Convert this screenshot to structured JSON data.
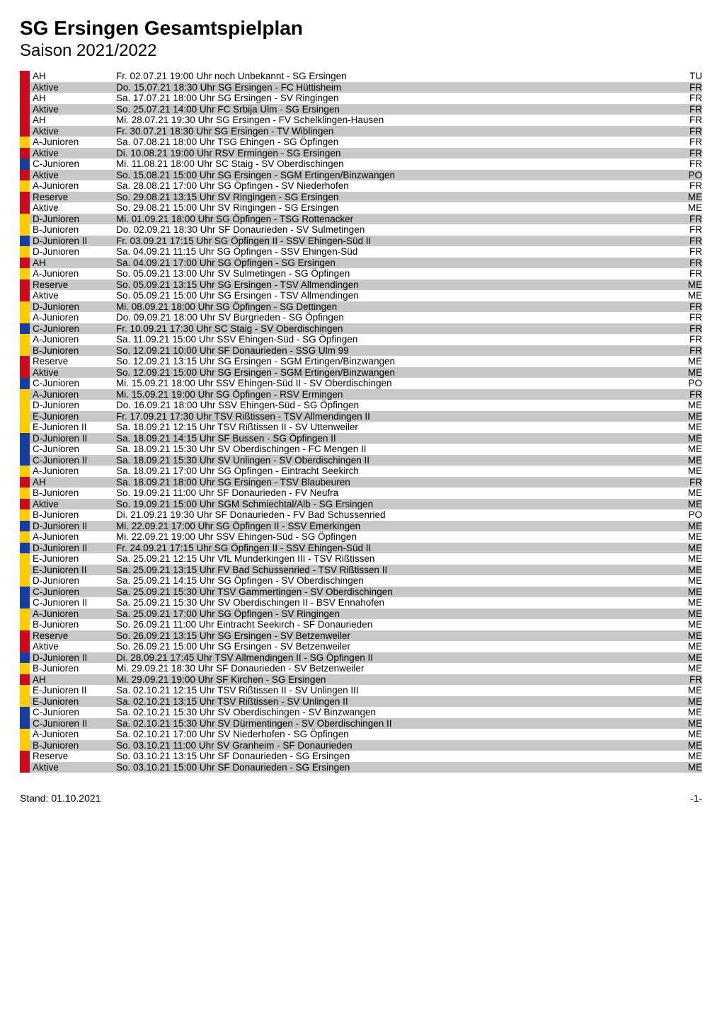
{
  "title": "SG Ersingen Gesamtspielplan",
  "subtitle": "Saison 2021/2022",
  "footer_left": "Stand: 01.10.2021",
  "footer_right": "-1-",
  "colors": {
    "AH": "#cc0a1e",
    "Aktive": "#cc0a1e",
    "A-Junioren": "#ffcc00",
    "B-Junioren": "#ffcc00",
    "C-Junioren": "#1a3ea0",
    "C-Junioren II": "#1a3ea0",
    "D-Junioren": "#ffcc00",
    "D-Junioren II": "#1a3ea0",
    "E-Junioren": "#ffcc00",
    "E-Junioren II": "#ffcc00",
    "Reserve": "#cc0a1e",
    "shaded_bg": "#c8c8c8"
  },
  "rows": [
    {
      "shaded": false,
      "cat": "AH",
      "text": "Fr.  02.07.21 19:00 Uhr noch Unbekannt - SG Ersingen",
      "code": "TU"
    },
    {
      "shaded": true,
      "cat": "Aktive",
      "text": "Do. 15.07.21 18:30 Uhr SG Ersingen - FC Hüttisheim",
      "code": "FR"
    },
    {
      "shaded": false,
      "cat": "AH",
      "text": "Sa. 17.07.21 18:00 Uhr SG Ersingen - SV Ringingen",
      "code": "FR"
    },
    {
      "shaded": true,
      "cat": "Aktive",
      "text": "So. 25.07.21 14:00 Uhr FC Srbija Ulm - SG Ersingen",
      "code": "FR"
    },
    {
      "shaded": false,
      "cat": "AH",
      "text": "Mi.  28.07.21 19:30 Uhr SG Ersingen - FV Schelklingen-Hausen",
      "code": "FR"
    },
    {
      "shaded": true,
      "cat": "Aktive",
      "text": "Fr.  30.07.21 18:30 Uhr SG Ersingen - TV Wiblingen",
      "code": "FR"
    },
    {
      "shaded": false,
      "cat": "A-Junioren",
      "text": "Sa. 07.08.21 18:00 Uhr TSG Ehingen - SG Öpfingen",
      "code": "FR"
    },
    {
      "shaded": true,
      "cat": "Aktive",
      "text": "Di.  10.08.21 19:00 Uhr RSV Ermingen - SG Ersingen",
      "code": "FR"
    },
    {
      "shaded": false,
      "cat": "C-Junioren",
      "text": "Mi.  11.08.21 18:00 Uhr SC Staig - SV Oberdischingen",
      "code": "FR"
    },
    {
      "shaded": true,
      "cat": "Aktive",
      "text": "So. 15.08.21 15:00 Uhr SG Ersingen - SGM Ertingen/Binzwangen",
      "code": "PO"
    },
    {
      "shaded": false,
      "cat": "A-Junioren",
      "text": "Sa. 28.08.21 17:00 Uhr SG Öpfingen - SV Niederhofen",
      "code": "FR"
    },
    {
      "shaded": true,
      "cat": "Reserve",
      "text": "So. 29.08.21 13:15 Uhr SV Ringingen - SG Ersingen",
      "code": "ME"
    },
    {
      "shaded": false,
      "cat": "Aktive",
      "text": "So. 29.08.21 15:00 Uhr SV Ringingen - SG Ersingen",
      "code": "ME"
    },
    {
      "shaded": true,
      "cat": "D-Junioren",
      "text": "Mi.  01.09.21 18:00 Uhr SG Öpfingen - TSG Rottenacker",
      "code": "FR"
    },
    {
      "shaded": false,
      "cat": "B-Junioren",
      "text": "Do. 02.09.21 18:30 Uhr SF Donaurieden - SV Sulmetingen",
      "code": "FR"
    },
    {
      "shaded": true,
      "cat": "D-Junioren II",
      "text": "Fr.  03.09.21 17:15 Uhr SG Öpfingen II - SSV Ehingen-Süd II",
      "code": "FR"
    },
    {
      "shaded": false,
      "cat": "D-Junioren",
      "text": "Sa. 04.09.21 11:15 Uhr SG Öpfingen - SSV Ehingen-Süd",
      "code": "FR"
    },
    {
      "shaded": true,
      "cat": "AH",
      "text": "Sa. 04.09.21 17:00 Uhr SG Öpfingen - SG Ersingen",
      "code": "FR"
    },
    {
      "shaded": false,
      "cat": "A-Junioren",
      "text": "So. 05.09.21 13:00 Uhr SV Sulmetingen - SG Öpfingen",
      "code": "FR"
    },
    {
      "shaded": true,
      "cat": "Reserve",
      "text": "So. 05.09.21 13:15 Uhr SG Ersingen - TSV Allmendingen",
      "code": "ME"
    },
    {
      "shaded": false,
      "cat": "Aktive",
      "text": "So. 05.09.21 15:00 Uhr SG Ersingen - TSV Allmendingen",
      "code": "ME"
    },
    {
      "shaded": true,
      "cat": "D-Junioren",
      "text": "Mi.  08.09.21 18:00 Uhr SG Öpfingen - SG Dettingen",
      "code": "FR"
    },
    {
      "shaded": false,
      "cat": "A-Junioren",
      "text": "Do. 09.09.21 18:00 Uhr SV Burgrieden - SG Öpfingen",
      "code": "FR"
    },
    {
      "shaded": true,
      "cat": "C-Junioren",
      "text": "Fr.  10.09.21 17:30 Uhr SC Staig - SV Oberdischingen",
      "code": "FR"
    },
    {
      "shaded": false,
      "cat": "A-Junioren",
      "text": "Sa. 11.09.21 15:00 Uhr SSV Ehingen-Süd - SG Öpfingen",
      "code": "FR"
    },
    {
      "shaded": true,
      "cat": "B-Junioren",
      "text": "So. 12.09.21 10:00 Uhr SF Donaurieden - SSG Ulm 99",
      "code": "FR"
    },
    {
      "shaded": false,
      "cat": "Reserve",
      "text": "So. 12.09.21 13:15 Uhr SG Ersingen - SGM Ertingen/Binzwangen",
      "code": "ME"
    },
    {
      "shaded": true,
      "cat": "Aktive",
      "text": "So. 12.09.21 15:00 Uhr SG Ersingen - SGM Ertingen/Binzwangen",
      "code": "ME"
    },
    {
      "shaded": false,
      "cat": "C-Junioren",
      "text": "Mi.  15.09.21 18:00 Uhr SSV Ehingen-Süd II - SV Oberdischingen",
      "code": "PO"
    },
    {
      "shaded": true,
      "cat": "A-Junioren",
      "text": "Mi.  15.09.21 19:00 Uhr SG Öpfingen - RSV Ermingen",
      "code": "FR"
    },
    {
      "shaded": false,
      "cat": "D-Junioren",
      "text": "Do. 16.09.21 18:00 Uhr SSV Ehingen-Süd - SG Öpfingen",
      "code": "ME"
    },
    {
      "shaded": true,
      "cat": "E-Junioren",
      "text": "Fr.  17.09.21 17:30 Uhr TSV Rißtissen - TSV Allmendingen II",
      "code": "ME"
    },
    {
      "shaded": false,
      "cat": "E-Junioren II",
      "text": "Sa. 18.09.21 12:15 Uhr TSV Rißtissen II - SV Uttenweiler",
      "code": "ME"
    },
    {
      "shaded": true,
      "cat": "D-Junioren II",
      "text": "Sa. 18.09.21 14:15 Uhr SF Bussen - SG Öpfingen II",
      "code": "ME"
    },
    {
      "shaded": false,
      "cat": "C-Junioren",
      "text": "Sa. 18.09.21 15:30 Uhr SV Oberdischingen - FC Mengen II",
      "code": "ME"
    },
    {
      "shaded": true,
      "cat": "C-Junioren II",
      "text": "Sa. 18.09.21 15:30 Uhr SV Unlingen - SV Oberdischingen II",
      "code": "ME"
    },
    {
      "shaded": false,
      "cat": "A-Junioren",
      "text": "Sa. 18.09.21 17:00 Uhr SG Öpfingen - Eintracht Seekirch",
      "code": "ME"
    },
    {
      "shaded": true,
      "cat": "AH",
      "text": "Sa. 18.09.21 18:00 Uhr SG Ersingen - TSV Blaubeuren",
      "code": "FR"
    },
    {
      "shaded": false,
      "cat": "B-Junioren",
      "text": "So. 19.09.21 11:00 Uhr SF Donaurieden - FV Neufra",
      "code": "ME"
    },
    {
      "shaded": true,
      "cat": "Aktive",
      "text": "So. 19.09.21 15:00 Uhr SGM Schmiechtal/Alb - SG Ersingen",
      "code": "ME"
    },
    {
      "shaded": false,
      "cat": "B-Junioren",
      "text": "Di.  21.09.21 19:30 Uhr SF Donaurieden - FV Bad Schussenried",
      "code": "PO"
    },
    {
      "shaded": true,
      "cat": "D-Junioren II",
      "text": "Mi.  22.09.21 17:00 Uhr SG Öpfingen II - SSV Emerkingen",
      "code": "ME"
    },
    {
      "shaded": false,
      "cat": "A-Junioren",
      "text": "Mi.  22.09.21 19:00 Uhr SSV Ehingen-Süd - SG Öpfingen",
      "code": "ME"
    },
    {
      "shaded": true,
      "cat": "D-Junioren II",
      "text": "Fr.  24.09.21 17:15 Uhr SG Öpfingen II - SSV Ehingen-Süd II",
      "code": "ME"
    },
    {
      "shaded": false,
      "cat": "E-Junioren",
      "text": "Sa. 25.09.21 12:15 Uhr VfL Munderkingen III - TSV Rißtissen",
      "code": "ME"
    },
    {
      "shaded": true,
      "cat": "E-Junioren II",
      "text": "Sa. 25.09.21 13:15 Uhr FV Bad Schussenried - TSV Rißtissen II",
      "code": "ME"
    },
    {
      "shaded": false,
      "cat": "D-Junioren",
      "text": "Sa. 25.09.21 14:15 Uhr SG Öpfingen - SV Oberdischingen",
      "code": "ME"
    },
    {
      "shaded": true,
      "cat": "C-Junioren",
      "text": "Sa. 25.09.21 15:30 Uhr TSV Gammertingen - SV Oberdischingen",
      "code": "ME"
    },
    {
      "shaded": false,
      "cat": "C-Junioren II",
      "text": "Sa. 25.09.21 15:30 Uhr SV Oberdischingen II - BSV Ennahofen",
      "code": "ME"
    },
    {
      "shaded": true,
      "cat": "A-Junioren",
      "text": "Sa. 25.09.21 17:00 Uhr SG Öpfingen - SV Ringingen",
      "code": "ME"
    },
    {
      "shaded": false,
      "cat": "B-Junioren",
      "text": "So. 26.09.21 11:00 Uhr Eintracht Seekirch - SF Donaurieden",
      "code": "ME"
    },
    {
      "shaded": true,
      "cat": "Reserve",
      "text": "So. 26.09.21 13:15 Uhr SG Ersingen - SV Betzenweiler",
      "code": "ME"
    },
    {
      "shaded": false,
      "cat": "Aktive",
      "text": "So. 26.09.21 15:00 Uhr SG Ersingen - SV Betzenweiler",
      "code": "ME"
    },
    {
      "shaded": true,
      "cat": "D-Junioren II",
      "text": "Di.  28.09.21 17:45 Uhr TSV Allmendingen II - SG Öpfingen II",
      "code": "ME"
    },
    {
      "shaded": false,
      "cat": "B-Junioren",
      "text": "Mi.  29.09.21 18:30 Uhr SF Donaurieden - SV Betzenweiler",
      "code": "ME"
    },
    {
      "shaded": true,
      "cat": "AH",
      "text": "Mi.  29.09.21 19:00 Uhr SF Kirchen - SG Ersingen",
      "code": "FR"
    },
    {
      "shaded": false,
      "cat": "E-Junioren II",
      "text": "Sa. 02.10.21 12:15 Uhr TSV Rißtissen II - SV Unlingen III",
      "code": "ME"
    },
    {
      "shaded": true,
      "cat": "E-Junioren",
      "text": "Sa. 02.10.21 13:15 Uhr TSV Rißtissen - SV Unlingen II",
      "code": "ME"
    },
    {
      "shaded": false,
      "cat": "C-Junioren",
      "text": "Sa. 02.10.21 15:30 Uhr SV Oberdischingen - SV Binzwangen",
      "code": "ME"
    },
    {
      "shaded": true,
      "cat": "C-Junioren II",
      "text": "Sa. 02.10.21 15:30 Uhr SV Dürmentingen - SV Oberdischingen II",
      "code": "ME"
    },
    {
      "shaded": false,
      "cat": "A-Junioren",
      "text": "Sa. 02.10.21 17:00 Uhr SV Niederhofen - SG Öpfingen",
      "code": "ME"
    },
    {
      "shaded": true,
      "cat": "B-Junioren",
      "text": "So. 03.10.21 11:00 Uhr SV Granheim - SF Donaurieden",
      "code": "ME"
    },
    {
      "shaded": false,
      "cat": "Reserve",
      "text": "So. 03.10.21 13:15 Uhr SF Donaurieden - SG Ersingen",
      "code": "ME"
    },
    {
      "shaded": true,
      "cat": "Aktive",
      "text": "So. 03.10.21 15:00 Uhr SF Donaurieden - SG Ersingen",
      "code": "ME"
    }
  ]
}
